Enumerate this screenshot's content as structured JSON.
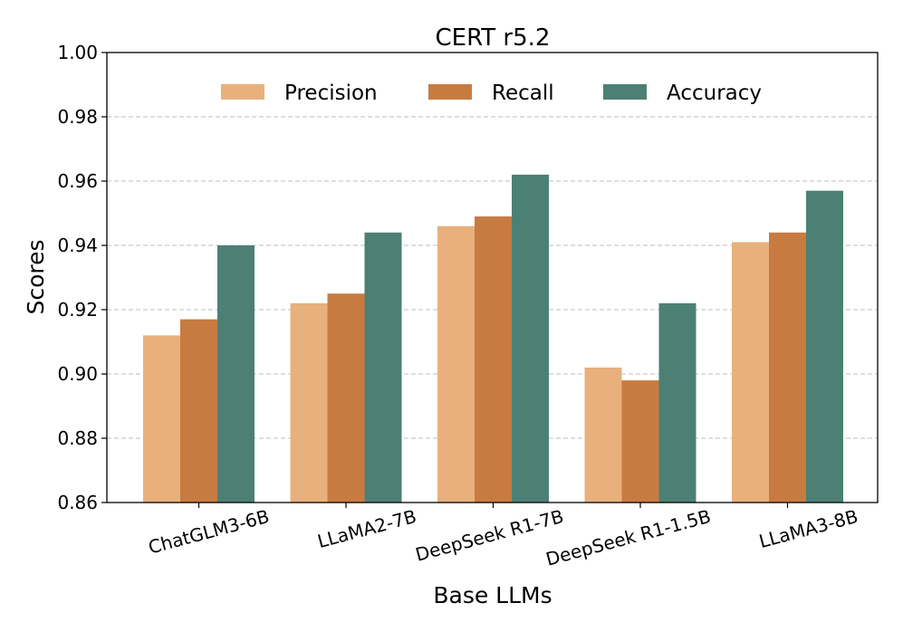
{
  "chart_data": {
    "type": "bar",
    "title": "CERT r5.2",
    "xlabel": "Base LLMs",
    "ylabel": "Scores",
    "categories": [
      "ChatGLM3-6B",
      "LLaMA2-7B",
      "DeepSeek R1-7B",
      "DeepSeek R1-1.5B",
      "LLaMA3-8B"
    ],
    "series": [
      {
        "name": "Precision",
        "color": "#e8b07c",
        "values": [
          0.912,
          0.922,
          0.946,
          0.902,
          0.941
        ]
      },
      {
        "name": "Recall",
        "color": "#c87b41",
        "values": [
          0.917,
          0.925,
          0.949,
          0.898,
          0.944
        ]
      },
      {
        "name": "Accuracy",
        "color": "#4c8075",
        "values": [
          0.94,
          0.944,
          0.962,
          0.922,
          0.957
        ]
      }
    ],
    "ylim": [
      0.86,
      1.0
    ],
    "yticks": [
      "0.86",
      "0.88",
      "0.90",
      "0.92",
      "0.94",
      "0.96",
      "0.98",
      "1.00"
    ],
    "grid": true,
    "legend_position": "top-center"
  }
}
